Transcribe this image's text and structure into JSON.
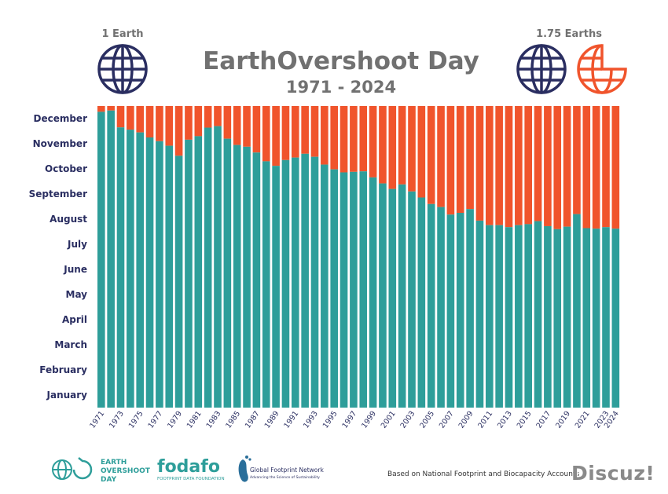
{
  "header": {
    "title": "EarthOvershoot Day",
    "subtitle": "1971 - 2024",
    "left_caption": "1 Earth",
    "right_caption": "1.75 Earths"
  },
  "colors": {
    "teal": "#2e9e9a",
    "orange": "#f0542c",
    "navy": "#2a2e61",
    "title_gray": "#717171"
  },
  "chart_data": {
    "type": "bar",
    "stacked": true,
    "title": "EarthOvershoot Day",
    "subtitle": "1971 - 2024",
    "x": [
      1971,
      1972,
      1973,
      1974,
      1975,
      1976,
      1977,
      1978,
      1979,
      1980,
      1981,
      1982,
      1983,
      1984,
      1985,
      1986,
      1987,
      1988,
      1989,
      1990,
      1991,
      1992,
      1993,
      1994,
      1995,
      1996,
      1997,
      1998,
      1999,
      2000,
      2001,
      2002,
      2003,
      2004,
      2005,
      2006,
      2007,
      2008,
      2009,
      2010,
      2011,
      2012,
      2013,
      2014,
      2015,
      2016,
      2017,
      2018,
      2019,
      2020,
      2021,
      2022,
      2023,
      2024
    ],
    "x_tick_labels": [
      "1971",
      "1973",
      "1975",
      "1977",
      "1979",
      "1981",
      "1983",
      "1985",
      "1987",
      "1989",
      "1991",
      "1993",
      "1995",
      "1997",
      "1999",
      "2001",
      "2003",
      "2005",
      "2007",
      "2009",
      "2011",
      "2013",
      "2015",
      "2017",
      "2019",
      "2021",
      "2023",
      "2024"
    ],
    "y_tick_labels": [
      "January",
      "February",
      "March",
      "April",
      "May",
      "June",
      "July",
      "August",
      "September",
      "October",
      "November",
      "December"
    ],
    "ylim": [
      0,
      12
    ],
    "series": [
      {
        "color": "#2e9e9a",
        "values": [
          11.77,
          11.82,
          11.15,
          11.06,
          10.95,
          10.75,
          10.6,
          10.42,
          10.02,
          10.66,
          10.8,
          11.14,
          11.2,
          10.7,
          10.45,
          10.38,
          10.15,
          9.8,
          9.62,
          9.85,
          9.95,
          10.1,
          9.98,
          9.67,
          9.48,
          9.36,
          9.38,
          9.4,
          9.16,
          8.92,
          8.7,
          8.88,
          8.6,
          8.36,
          8.1,
          7.98,
          7.68,
          7.75,
          7.9,
          7.44,
          7.26,
          7.26,
          7.18,
          7.26,
          7.3,
          7.42,
          7.22,
          7.1,
          7.2,
          7.7,
          7.14,
          7.12,
          7.18,
          7.12
        ]
      },
      {
        "color": "#f0542c",
        "values_note": "remainder of the year (12 - teal value)"
      }
    ]
  },
  "footer": {
    "logo1_line1": "EARTH",
    "logo1_line2": "OVERSHOOT",
    "logo1_line3": "DAY",
    "logo2_name": "fodafo",
    "logo2_tagline": "FOOTPRINT DATA FOUNDATION",
    "logo3_name": "Global Footprint Network",
    "logo3_tagline": "Advancing the Science of Sustainability",
    "note": "Based on National Footprint and Biocapacity Accounts",
    "watermark": "Discuz!"
  }
}
